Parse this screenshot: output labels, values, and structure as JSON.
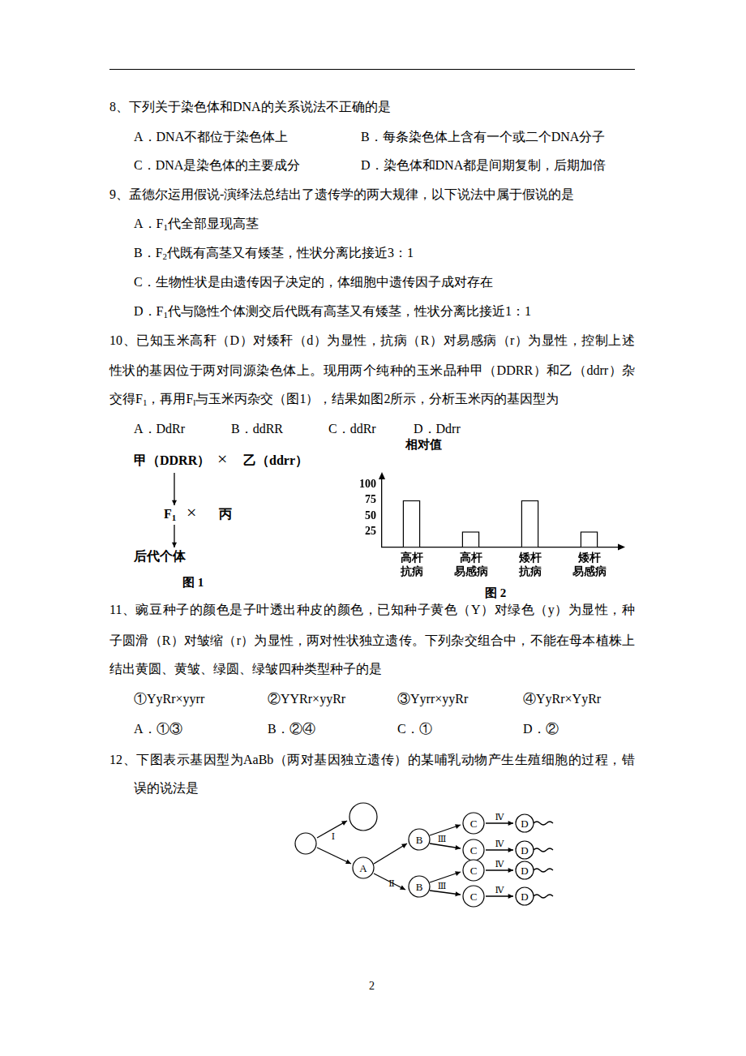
{
  "lines": [
    [
      [
        "8、下列关于染色体和DNA的关系说法不正确的是"
      ]
    ],
    [
      [
        "A．DNA不都位于染色体上"
      ],
      [
        "B．每条染色体上含有一个或二个DNA分子"
      ]
    ],
    [
      [
        "C．DNA是染色体的主要成分"
      ],
      [
        "D．染色体和DNA都是间期复制，后期加倍"
      ]
    ],
    [
      [
        "9、孟德尔运用假说-演绎法总结出了遗传学的两大规律，以下说法中属于假说的是"
      ]
    ],
    [
      [
        "A．F",
        {
          "sub": "1"
        },
        "代全部显现高茎"
      ]
    ],
    [
      [
        "B．F",
        {
          "sub": "2"
        },
        "代既有高茎又有矮茎，性状分离比接近3：1"
      ]
    ],
    [
      [
        "C．生物性状是由遗传因子决定的，体细胞中遗传因子成对存在"
      ]
    ],
    [
      [
        "D．F",
        {
          "sub": "1"
        },
        "代与隐性个体测交后代既有高茎又有矮茎，性状分离比接近1：1"
      ]
    ],
    [
      [
        "10、已知玉米高秆（D）对矮秆（d）为显性，抗病（R）对易感病（r）为显性，控制上述"
      ]
    ],
    [
      [
        "性状的基因位于两对同源染色体上。现用两个纯种的玉米品种甲（DDRR）和乙（ddrr）杂"
      ]
    ],
    [
      [
        "交得F",
        {
          "sub": "1"
        },
        "，再用F",
        {
          "sub": "l"
        },
        "与玉米丙杂交（图1），结果如图2所示，分析玉米丙的基因型为"
      ]
    ],
    [
      [
        "A．DdRr"
      ],
      [
        "B．ddRR"
      ],
      [
        "C．ddRr"
      ],
      [
        "D．Ddrr"
      ]
    ],
    [
      [
        "11、豌豆种子的颜色是子叶透出种皮的颜色，已知种子黄色（Y）对绿色（y）为显性，种"
      ]
    ],
    [
      [
        "子圆滑（R）对皱缩（r）为显性，两对性状独立遗传。下列杂交组合中，不能在母本植株上"
      ]
    ],
    [
      [
        "结出黄圆、黄皱、绿圆、绿皱四种类型种子的是"
      ]
    ],
    [
      [
        "①YyRr×yyrr"
      ],
      [
        "②YYRr×yyRr"
      ],
      [
        "③Yyrr×yyRr"
      ],
      [
        "④YyRr×YyRr"
      ]
    ],
    [
      [
        "A．①③"
      ],
      [
        "B．②④"
      ],
      [
        "C．①"
      ],
      [
        "D．②"
      ]
    ],
    [
      [
        "12、下图表示基因型为AaBb（两对基因独立遗传）的某哺乳动物产生生殖细胞的过程，错"
      ]
    ],
    [
      [
        "误的说法是"
      ]
    ]
  ],
  "figure1": {
    "parent1": "甲（DDRR）",
    "cross": "×",
    "parent2": "乙（ddrr）",
    "f1": [
      "F",
      {
        "sub": "1"
      }
    ],
    "parent3": "丙",
    "offspring": "后代个体",
    "caption": "图 1"
  },
  "chart_data": {
    "type": "bar",
    "y_label": "相对值",
    "caption": "图 2",
    "categories": [
      [
        "高杆",
        "抗病"
      ],
      [
        "高杆",
        "易感病"
      ],
      [
        "矮杆",
        "抗病"
      ],
      [
        "矮杆",
        "易感病"
      ]
    ],
    "values": [
      75,
      25,
      75,
      25
    ],
    "color": "#ffffff",
    "ylim": [
      0,
      110
    ],
    "yticks": [
      25,
      50,
      75,
      100
    ],
    "grid": false
  },
  "figure12": {
    "stages": [
      "Ⅰ",
      "Ⅱ",
      "Ⅲ",
      "Ⅳ"
    ],
    "cells": [
      "A",
      "B",
      "C",
      "D"
    ]
  },
  "page_number": "2"
}
